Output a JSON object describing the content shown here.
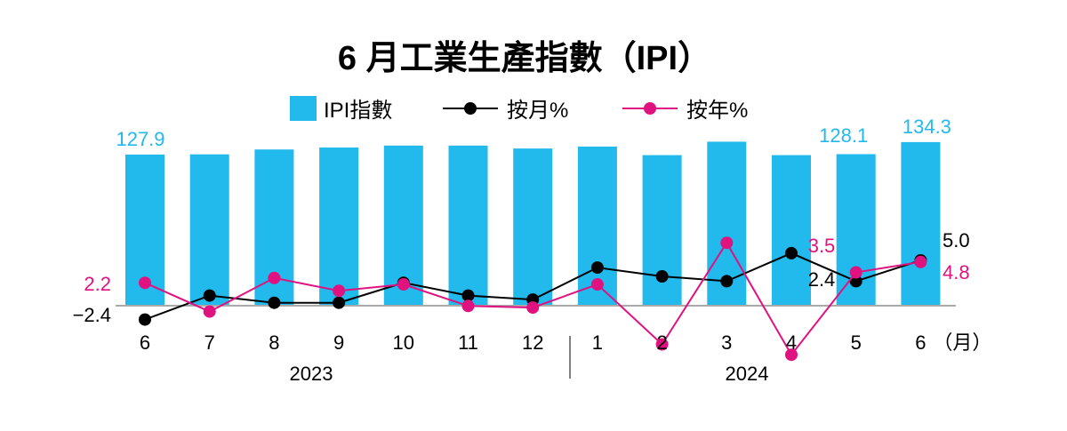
{
  "chart_data": {
    "type": "bar+line",
    "title": "6 月工業生產指數（IPI）",
    "categories": [
      "6",
      "7",
      "8",
      "9",
      "10",
      "11",
      "12",
      "1",
      "2",
      "3",
      "4",
      "5",
      "6"
    ],
    "x_unit_label": "（月）",
    "year_groups": [
      {
        "label": "2023",
        "months": [
          "6",
          "7",
          "8",
          "9",
          "10",
          "11",
          "12"
        ]
      },
      {
        "label": "2024",
        "months": [
          "1",
          "2",
          "3",
          "4",
          "5",
          "6"
        ]
      }
    ],
    "legend_placement": "top-center",
    "grid": false,
    "series": [
      {
        "name": "IPI指數",
        "type": "bar",
        "color": "#22b9ec",
        "values": [
          127.9,
          128.0,
          130.5,
          131.5,
          132.5,
          132.5,
          131.0,
          132.0,
          127.6,
          134.5,
          127.6,
          128.1,
          134.3
        ],
        "labeled": {
          "0": "127.9",
          "11": "128.1",
          "12": "134.3"
        }
      },
      {
        "name": "按月%",
        "type": "line",
        "color": "#000000",
        "values": [
          -2.4,
          0.6,
          -0.3,
          -0.3,
          2.2,
          0.6,
          0.1,
          4.1,
          3.0,
          2.4,
          5.9,
          2.4,
          5.0
        ],
        "labeled": {
          "0": "−2.4",
          "11": "2.4",
          "12": "5.0"
        }
      },
      {
        "name": "按年%",
        "type": "line",
        "color": "#e0127f",
        "values": [
          2.2,
          -1.4,
          2.8,
          1.2,
          2.0,
          -0.7,
          -0.9,
          2.0,
          -5.5,
          7.2,
          -6.8,
          3.5,
          4.8
        ],
        "labeled": {
          "0": "2.2",
          "11": "3.5",
          "12": "4.8"
        }
      }
    ]
  }
}
